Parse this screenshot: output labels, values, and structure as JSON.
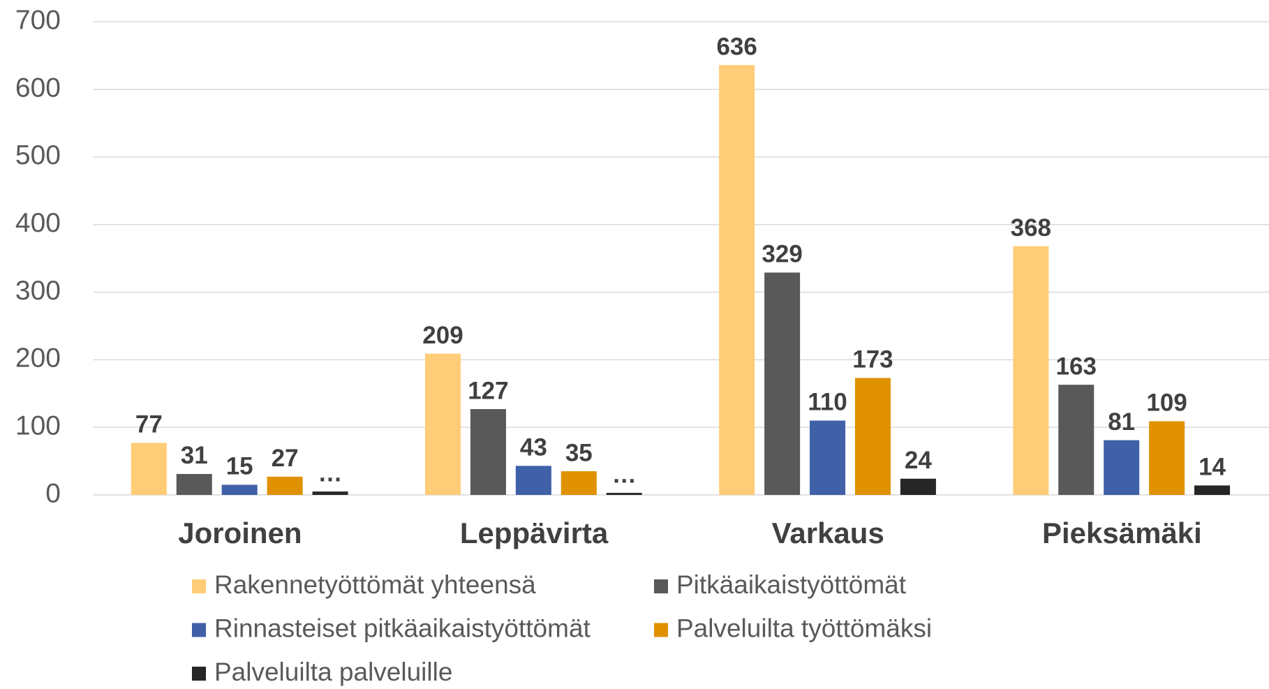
{
  "chart_data": {
    "type": "bar",
    "categories": [
      "Joroinen",
      "Leppävirta",
      "Varkaus",
      "Pieksämäki"
    ],
    "series": [
      {
        "name": "Rakennetyöttömät yhteensä",
        "color": "#FFCC77",
        "values": [
          77,
          209,
          636,
          368
        ]
      },
      {
        "name": "Pitkäaikaistyöttömät",
        "color": "#595959",
        "values": [
          31,
          127,
          329,
          163
        ]
      },
      {
        "name": "Rinnasteiset pitkäaikaistyöttömät",
        "color": "#4061A8",
        "values": [
          15,
          43,
          110,
          81
        ]
      },
      {
        "name": "Palveluilta työttömäksi",
        "color": "#E09100",
        "values": [
          27,
          35,
          173,
          109
        ]
      },
      {
        "name": "Palveluilta palveluille",
        "color": "#262626",
        "values": [
          5,
          3,
          24,
          14
        ],
        "value_labels": [
          "…",
          "…",
          "24",
          "14"
        ]
      }
    ],
    "ylim": [
      0,
      700
    ],
    "yticks": [
      0,
      100,
      200,
      300,
      400,
      500,
      600,
      700
    ],
    "grid": true,
    "legend": "bottom"
  }
}
